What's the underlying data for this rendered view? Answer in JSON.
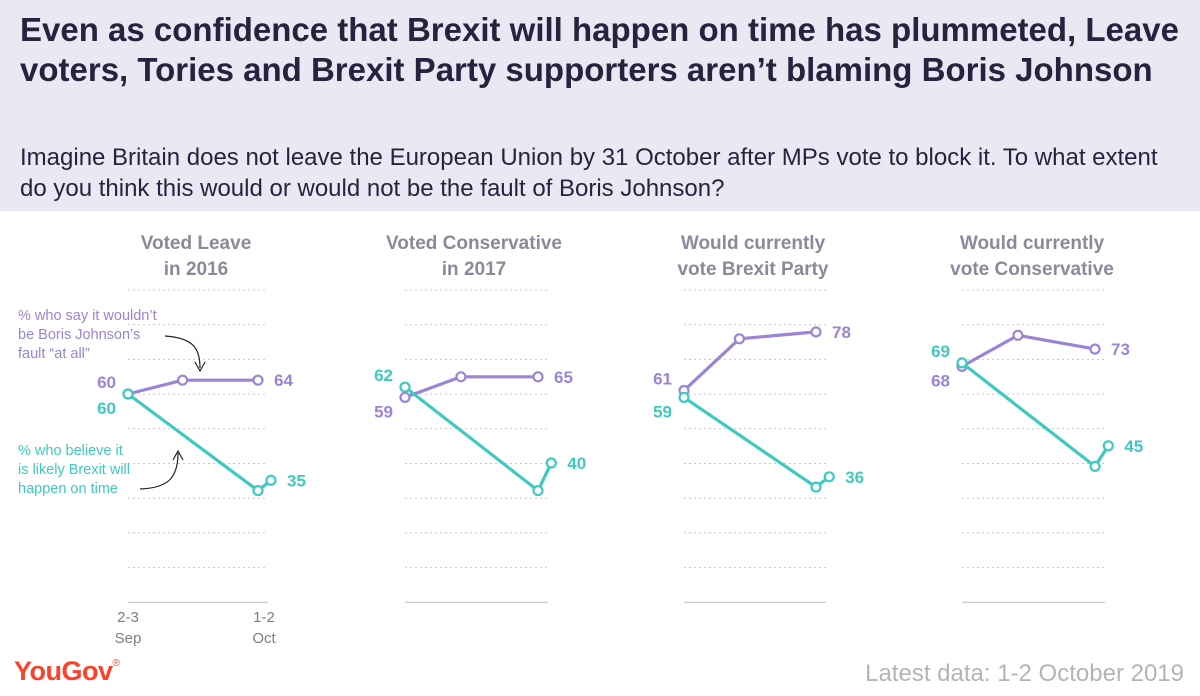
{
  "title": "Even as confidence that Brexit will happen on time has plummeted, Leave voters, Tories and Brexit Party supporters aren’t blaming Boris Johnson",
  "subtitle": "Imagine Britain does not leave the European Union by 31 October after MPs vote to block it. To what extent do you think this would or would not be the fault of Boris Johnson?",
  "footer": {
    "brand": "YouGov",
    "trademark": "®",
    "note": "Latest data: 1-2 October 2019"
  },
  "annotations": {
    "fault": [
      "% who say it wouldn’t",
      "be Boris Johnson’s",
      "fault “at all”"
    ],
    "likely": [
      "% who believe it",
      "is likely Brexit will",
      "happen on time"
    ]
  },
  "colors": {
    "fault": "#9b84d3",
    "likely": "#3fc9c1",
    "grid": "#c8c8c8",
    "text": "#2c2c44",
    "background_header": "#ebe8f3"
  },
  "chart_data": [
    {
      "type": "line",
      "panel_title": [
        "Voted Leave",
        "in 2016"
      ],
      "x_labels": [
        "2-3 Sep",
        "1-2 Oct"
      ],
      "x": [
        0,
        0.42,
        1.0,
        1.1
      ],
      "ylim": [
        0,
        100
      ],
      "grid": true,
      "series": [
        {
          "name": "% who say it wouldn’t be Boris Johnson’s fault “at all”",
          "values": [
            60,
            64,
            64,
            null
          ],
          "start_label": "60",
          "end_label": "64"
        },
        {
          "name": "% who believe it is likely Brexit will happen on time",
          "values": [
            60,
            null,
            32,
            35
          ],
          "start_label": "60",
          "end_label": "35"
        }
      ]
    },
    {
      "type": "line",
      "panel_title": [
        "Voted Conservative",
        "in 2017"
      ],
      "x": [
        0,
        0.42,
        1.0,
        1.1
      ],
      "ylim": [
        0,
        100
      ],
      "grid": true,
      "series": [
        {
          "name": "% who say it wouldn’t be Boris Johnson’s fault “at all”",
          "values": [
            59,
            65,
            65,
            null
          ],
          "start_label": "59",
          "end_label": "65"
        },
        {
          "name": "% who believe it is likely Brexit will happen on time",
          "values": [
            62,
            null,
            32,
            40
          ],
          "start_label": "62",
          "end_label": "40"
        }
      ]
    },
    {
      "type": "line",
      "panel_title": [
        "Would currently",
        "vote Brexit Party"
      ],
      "x": [
        0,
        0.42,
        1.0,
        1.1
      ],
      "ylim": [
        0,
        100
      ],
      "grid": true,
      "series": [
        {
          "name": "% who say it wouldn’t be Boris Johnson’s fault “at all”",
          "values": [
            61,
            76,
            78,
            null
          ],
          "start_label": "61",
          "end_label": "78"
        },
        {
          "name": "% who believe it is likely Brexit will happen on time",
          "values": [
            59,
            null,
            33,
            36
          ],
          "start_label": "59",
          "end_label": "36"
        }
      ]
    },
    {
      "type": "line",
      "panel_title": [
        "Would currently",
        "vote Conservative"
      ],
      "x": [
        0,
        0.42,
        1.0,
        1.1
      ],
      "ylim": [
        0,
        100
      ],
      "grid": true,
      "series": [
        {
          "name": "% who say it wouldn’t be Boris Johnson’s fault “at all”",
          "values": [
            68,
            77,
            73,
            null
          ],
          "start_label": "68",
          "end_label": "73"
        },
        {
          "name": "% who believe it is likely Brexit will happen on time",
          "values": [
            69,
            null,
            39,
            45
          ],
          "start_label": "69",
          "end_label": "45"
        }
      ]
    }
  ]
}
